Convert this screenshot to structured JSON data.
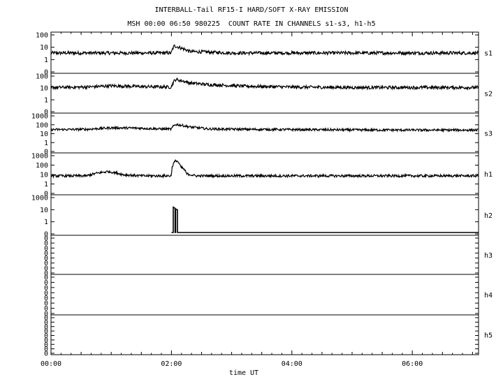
{
  "chart_data": {
    "type": "line",
    "title": "INTERBALL-Tail RF15-I HARD/SOFT X-RAY EMISSION",
    "subtitle": "MSH 00:00 06:50 980225  COUNT RATE IN CHANNELS s1-s3, h1-h5",
    "xlabel": "time UT",
    "x_ticks": [
      "00:00",
      "02:00",
      "04:00",
      "06:00"
    ],
    "xlim_hours": [
      0,
      7.1
    ],
    "y_scale": "log",
    "grid": false,
    "panels": [
      {
        "name": "s1",
        "y_tick_labels": [
          "100",
          "10",
          "1",
          "0"
        ],
        "ylim": [
          0.1,
          100
        ],
        "points": [
          [
            0.0,
            3
          ],
          [
            0.8,
            3
          ],
          [
            1.5,
            3
          ],
          [
            2.0,
            3
          ],
          [
            2.05,
            12
          ],
          [
            2.15,
            8
          ],
          [
            2.3,
            4
          ],
          [
            3.0,
            3
          ],
          [
            4.0,
            3
          ],
          [
            5.0,
            3
          ],
          [
            6.0,
            3
          ],
          [
            7.1,
            3
          ]
        ]
      },
      {
        "name": "s2",
        "y_tick_labels": [
          "100",
          "10",
          "1",
          "0"
        ],
        "ylim": [
          0.1,
          100
        ],
        "points": [
          [
            0.0,
            10
          ],
          [
            0.6,
            11
          ],
          [
            1.0,
            14
          ],
          [
            1.5,
            12
          ],
          [
            2.0,
            11
          ],
          [
            2.07,
            50
          ],
          [
            2.3,
            25
          ],
          [
            2.6,
            18
          ],
          [
            3.2,
            13
          ],
          [
            4.0,
            11
          ],
          [
            5.0,
            10
          ],
          [
            6.0,
            10
          ],
          [
            7.1,
            10
          ]
        ]
      },
      {
        "name": "s3",
        "y_tick_labels": [
          "1000",
          "100",
          "10",
          "1",
          "0"
        ],
        "ylim": [
          0.1,
          1000
        ],
        "points": [
          [
            0.0,
            25
          ],
          [
            0.6,
            27
          ],
          [
            1.0,
            40
          ],
          [
            1.4,
            38
          ],
          [
            1.8,
            30
          ],
          [
            2.0,
            28
          ],
          [
            2.07,
            100
          ],
          [
            2.3,
            50
          ],
          [
            2.6,
            30
          ],
          [
            3.2,
            27
          ],
          [
            4.0,
            25
          ],
          [
            5.0,
            23
          ],
          [
            6.0,
            22
          ],
          [
            7.1,
            22
          ]
        ]
      },
      {
        "name": "h1",
        "y_tick_labels": [
          "1000",
          "100",
          "10",
          "1",
          "0"
        ],
        "ylim": [
          0.1,
          1000
        ],
        "points": [
          [
            0.0,
            6
          ],
          [
            0.6,
            6
          ],
          [
            0.95,
            18
          ],
          [
            1.2,
            8
          ],
          [
            1.5,
            6
          ],
          [
            2.0,
            6
          ],
          [
            2.08,
            300
          ],
          [
            2.15,
            60
          ],
          [
            2.25,
            10
          ],
          [
            2.4,
            6
          ],
          [
            3.0,
            6
          ],
          [
            4.0,
            6
          ],
          [
            5.0,
            6
          ],
          [
            6.0,
            6
          ],
          [
            7.1,
            6
          ]
        ]
      },
      {
        "name": "h2",
        "y_tick_labels": [
          "1000",
          "10",
          "1",
          "0"
        ],
        "ylim": [
          0.1,
          1000
        ],
        "points": [
          [
            2.0,
            0.1
          ],
          [
            2.03,
            0.1
          ],
          [
            2.03,
            80
          ],
          [
            2.06,
            60
          ],
          [
            2.06,
            0.1
          ],
          [
            2.07,
            0.1
          ],
          [
            2.07,
            50
          ],
          [
            2.1,
            40
          ],
          [
            2.1,
            0.1
          ],
          [
            7.1,
            0.1
          ]
        ]
      },
      {
        "name": "h3",
        "y_tick_labels": [
          "0",
          "0",
          "0",
          "0",
          "0",
          "0",
          "0",
          "0"
        ],
        "ylim": [
          0.1,
          100
        ],
        "points": []
      },
      {
        "name": "h4",
        "y_tick_labels": [
          "0",
          "0",
          "0",
          "0",
          "0",
          "0",
          "0",
          "0"
        ],
        "ylim": [
          0.1,
          100
        ],
        "points": []
      },
      {
        "name": "h5",
        "y_tick_labels": [
          "0",
          "0",
          "0",
          "0",
          "0",
          "0",
          "0",
          "0",
          "0"
        ],
        "ylim": [
          0.1,
          100
        ],
        "points": []
      }
    ]
  }
}
